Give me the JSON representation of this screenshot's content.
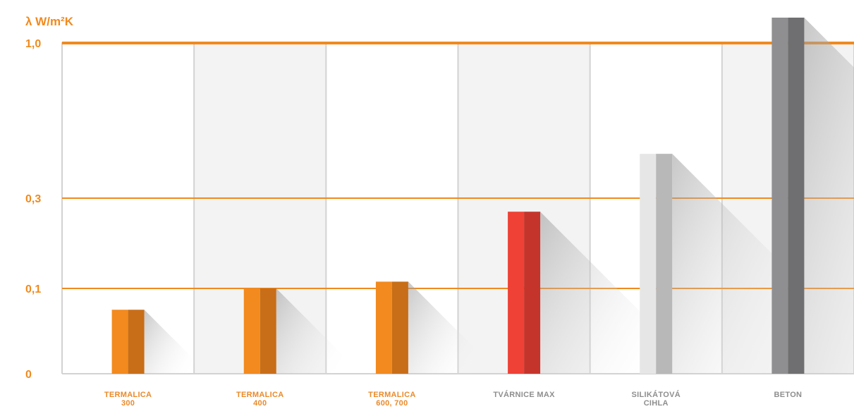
{
  "chart_data": {
    "type": "bar",
    "title": "",
    "ylabel": "λ W/m²K",
    "xlabel": "",
    "y_tick_labels": [
      "0",
      "0,1",
      "0,3",
      "1,0"
    ],
    "y_ticks": [
      0,
      0.1,
      0.3,
      1.0
    ],
    "scale_note": "nonlinear axis",
    "categories": [
      [
        "TERMALICA",
        "300"
      ],
      [
        "TERMALICA",
        "400"
      ],
      [
        "TERMALICA",
        "600, 700"
      ],
      [
        "TVÁRNICE MAX"
      ],
      [
        "SILIKÁTOVÁ",
        "CIHLA"
      ],
      [
        "BETON"
      ]
    ],
    "values": [
      0.075,
      0.1,
      0.115,
      0.27,
      0.5,
      1.2
    ],
    "colors": {
      "accent": "#f08a1e",
      "grid": "#d2d2d2",
      "band": "#f3f3f3",
      "label_orange": "#e98a2a",
      "label_gray": "#8e8e8e"
    },
    "bar_colors": [
      [
        "#f28a1f",
        "#c86e18"
      ],
      [
        "#f28a1f",
        "#c86e18"
      ],
      [
        "#f28a1f",
        "#c86e18"
      ],
      [
        "#ef4135",
        "#c5342b"
      ],
      [
        "#e6e6e6",
        "#b8b8b8"
      ],
      [
        "#8f8f91",
        "#6f6f71"
      ]
    ],
    "label_colors": [
      "orange",
      "orange",
      "orange",
      "gray",
      "gray",
      "gray"
    ]
  }
}
